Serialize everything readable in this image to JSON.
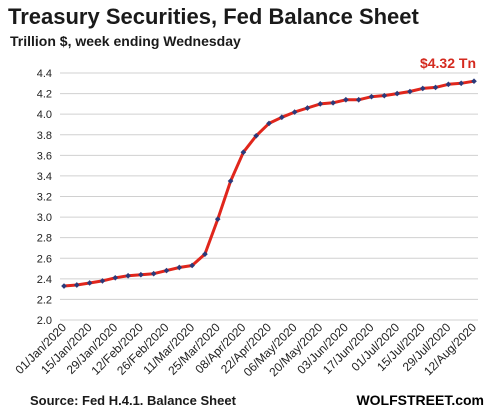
{
  "chart_data": {
    "type": "line",
    "title": "Treasury Securities, Fed Balance Sheet",
    "subtitle": "Trillion $, week ending Wednesday",
    "annotation": "$4.32 Tn",
    "source": "Source: Fed H.4.1. Balance Sheet",
    "brand": "WOLFSTREET.com",
    "yticks": [
      "2.0",
      "2.2",
      "2.4",
      "2.6",
      "2.8",
      "3.0",
      "3.2",
      "3.4",
      "3.6",
      "3.8",
      "4.0",
      "4.2",
      "4.4"
    ],
    "ylim": [
      2.0,
      4.4
    ],
    "xticks": [
      "01/Jan/2020",
      "15/Jan/2020",
      "29/Jan/2020",
      "12/Feb/2020",
      "26/Feb/2020",
      "11/Mar/2020",
      "25/Mar/2020",
      "08/Apr/2020",
      "22/Apr/2020",
      "06/May/2020",
      "20/May/2020",
      "03/Jun/2020",
      "17/Jun/2020",
      "01/Jul/2020",
      "15/Jul/2020",
      "29/Jul/2020",
      "12/Aug/2020"
    ],
    "x": [
      "01/Jan/2020",
      "08/Jan/2020",
      "15/Jan/2020",
      "22/Jan/2020",
      "29/Jan/2020",
      "05/Feb/2020",
      "12/Feb/2020",
      "19/Feb/2020",
      "26/Feb/2020",
      "04/Mar/2020",
      "11/Mar/2020",
      "18/Mar/2020",
      "25/Mar/2020",
      "01/Apr/2020",
      "08/Apr/2020",
      "15/Apr/2020",
      "22/Apr/2020",
      "29/Apr/2020",
      "06/May/2020",
      "13/May/2020",
      "20/May/2020",
      "27/May/2020",
      "03/Jun/2020",
      "10/Jun/2020",
      "17/Jun/2020",
      "24/Jun/2020",
      "01/Jul/2020",
      "08/Jul/2020",
      "15/Jul/2020",
      "22/Jul/2020",
      "29/Jul/2020",
      "05/Aug/2020",
      "12/Aug/2020"
    ],
    "values": [
      2.33,
      2.34,
      2.36,
      2.38,
      2.41,
      2.43,
      2.44,
      2.45,
      2.48,
      2.51,
      2.53,
      2.64,
      2.98,
      3.35,
      3.63,
      3.79,
      3.91,
      3.97,
      4.02,
      4.06,
      4.1,
      4.11,
      4.14,
      4.14,
      4.17,
      4.18,
      4.2,
      4.22,
      4.25,
      4.26,
      4.29,
      4.3,
      4.32
    ],
    "line_color": "#e0261c",
    "marker_color": "#2b3a7a",
    "grid_color": "#d0d0d0"
  }
}
